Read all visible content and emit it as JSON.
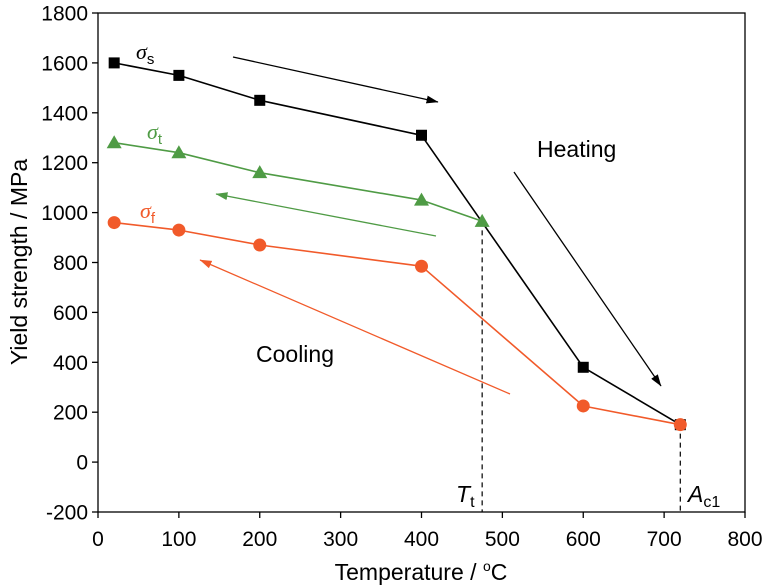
{
  "chart_data": {
    "type": "line",
    "xlabel": {
      "text": "Temperature / ",
      "superscript": "o",
      "unit": "C"
    },
    "ylabel": "Yield strength / MPa",
    "xlim": [
      0,
      800
    ],
    "ylim": [
      -200,
      1800
    ],
    "xticks": [
      0,
      100,
      200,
      300,
      400,
      500,
      600,
      700,
      800
    ],
    "yticks": [
      -200,
      0,
      200,
      400,
      600,
      800,
      1000,
      1200,
      1400,
      1600,
      1800
    ],
    "grid": false,
    "legend": "none",
    "series": [
      {
        "name": "σs",
        "color": "#000000",
        "marker": "square",
        "x": [
          20,
          100,
          200,
          400,
          600,
          720
        ],
        "y": [
          1600,
          1550,
          1450,
          1310,
          380,
          150
        ]
      },
      {
        "name": "σt",
        "color": "#4f9b45",
        "marker": "triangle",
        "x": [
          20,
          100,
          200,
          400,
          475
        ],
        "y": [
          1280,
          1240,
          1160,
          1050,
          965
        ]
      },
      {
        "name": "σf",
        "color": "#f15a2a",
        "marker": "circle",
        "x": [
          20,
          100,
          200,
          400,
          600,
          720
        ],
        "y": [
          960,
          930,
          870,
          785,
          225,
          150
        ]
      }
    ],
    "annotations": {
      "heating": "Heating",
      "cooling": "Cooling",
      "reference_lines": [
        {
          "label": "Tt",
          "x": 475,
          "y": 965,
          "style": "dashed"
        },
        {
          "label": "Ac1",
          "x": 720,
          "y": 150,
          "style": "dashed"
        }
      ]
    }
  }
}
